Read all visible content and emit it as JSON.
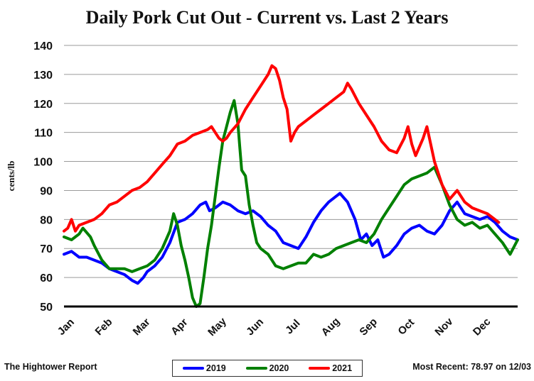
{
  "chart_data": {
    "type": "line",
    "title": "Daily Pork Cut Out - Current vs. Last 2 Years",
    "ylabel": "cents/lb",
    "xlabel": "",
    "ylim": [
      50,
      140
    ],
    "yticks": [
      "50",
      "60",
      "70",
      "80",
      "90",
      "100",
      "110",
      "120",
      "130",
      "140"
    ],
    "xlim": [
      1,
      13
    ],
    "months": [
      "Jan",
      "Feb",
      "Mar",
      "Apr",
      "May",
      "Jun",
      "Jul",
      "Aug",
      "Sep",
      "Oct",
      "Nov",
      "Dec"
    ],
    "grid": true,
    "legend_position": "bottom",
    "series": [
      {
        "name": "2019",
        "color": "#0000ff",
        "points": [
          [
            1.0,
            68
          ],
          [
            1.2,
            69
          ],
          [
            1.4,
            67
          ],
          [
            1.6,
            67
          ],
          [
            1.8,
            66
          ],
          [
            2.0,
            65
          ],
          [
            2.2,
            63
          ],
          [
            2.4,
            62
          ],
          [
            2.6,
            61
          ],
          [
            2.8,
            59
          ],
          [
            2.95,
            58
          ],
          [
            3.1,
            60
          ],
          [
            3.2,
            62
          ],
          [
            3.4,
            64
          ],
          [
            3.6,
            67
          ],
          [
            3.8,
            72
          ],
          [
            4.0,
            79
          ],
          [
            4.2,
            80
          ],
          [
            4.4,
            82
          ],
          [
            4.6,
            85
          ],
          [
            4.75,
            86
          ],
          [
            4.85,
            83
          ],
          [
            5.0,
            84
          ],
          [
            5.2,
            86
          ],
          [
            5.4,
            85
          ],
          [
            5.6,
            83
          ],
          [
            5.8,
            82
          ],
          [
            6.0,
            83
          ],
          [
            6.2,
            81
          ],
          [
            6.4,
            78
          ],
          [
            6.6,
            76
          ],
          [
            6.8,
            72
          ],
          [
            7.0,
            71
          ],
          [
            7.2,
            70
          ],
          [
            7.4,
            74
          ],
          [
            7.6,
            79
          ],
          [
            7.8,
            83
          ],
          [
            8.0,
            86
          ],
          [
            8.2,
            88
          ],
          [
            8.3,
            89
          ],
          [
            8.5,
            86
          ],
          [
            8.7,
            80
          ],
          [
            8.85,
            73
          ],
          [
            9.0,
            75
          ],
          [
            9.15,
            71
          ],
          [
            9.3,
            73
          ],
          [
            9.45,
            67
          ],
          [
            9.6,
            68
          ],
          [
            9.8,
            71
          ],
          [
            10.0,
            75
          ],
          [
            10.2,
            77
          ],
          [
            10.4,
            78
          ],
          [
            10.6,
            76
          ],
          [
            10.8,
            75
          ],
          [
            11.0,
            78
          ],
          [
            11.2,
            83
          ],
          [
            11.4,
            86
          ],
          [
            11.6,
            82
          ],
          [
            11.8,
            81
          ],
          [
            12.0,
            80
          ],
          [
            12.2,
            81
          ],
          [
            12.4,
            79
          ],
          [
            12.6,
            76
          ],
          [
            12.8,
            74
          ],
          [
            13.0,
            73
          ]
        ]
      },
      {
        "name": "2020",
        "color": "#008000",
        "points": [
          [
            1.0,
            74
          ],
          [
            1.2,
            73
          ],
          [
            1.4,
            75
          ],
          [
            1.5,
            77
          ],
          [
            1.7,
            74
          ],
          [
            1.8,
            71
          ],
          [
            2.0,
            66
          ],
          [
            2.2,
            63
          ],
          [
            2.4,
            63
          ],
          [
            2.6,
            63
          ],
          [
            2.8,
            62
          ],
          [
            3.0,
            63
          ],
          [
            3.2,
            64
          ],
          [
            3.4,
            66
          ],
          [
            3.6,
            70
          ],
          [
            3.8,
            76
          ],
          [
            3.9,
            82
          ],
          [
            4.0,
            78
          ],
          [
            4.1,
            71
          ],
          [
            4.2,
            66
          ],
          [
            4.3,
            60
          ],
          [
            4.4,
            53
          ],
          [
            4.5,
            50
          ],
          [
            4.6,
            51
          ],
          [
            4.7,
            60
          ],
          [
            4.8,
            70
          ],
          [
            4.9,
            78
          ],
          [
            5.0,
            88
          ],
          [
            5.1,
            98
          ],
          [
            5.2,
            107
          ],
          [
            5.3,
            112
          ],
          [
            5.4,
            117
          ],
          [
            5.5,
            121
          ],
          [
            5.6,
            113
          ],
          [
            5.65,
            105
          ],
          [
            5.7,
            97
          ],
          [
            5.8,
            95
          ],
          [
            5.9,
            85
          ],
          [
            6.0,
            78
          ],
          [
            6.1,
            72
          ],
          [
            6.2,
            70
          ],
          [
            6.4,
            68
          ],
          [
            6.6,
            64
          ],
          [
            6.8,
            63
          ],
          [
            7.0,
            64
          ],
          [
            7.2,
            65
          ],
          [
            7.4,
            65
          ],
          [
            7.6,
            68
          ],
          [
            7.8,
            67
          ],
          [
            8.0,
            68
          ],
          [
            8.2,
            70
          ],
          [
            8.4,
            71
          ],
          [
            8.6,
            72
          ],
          [
            8.8,
            73
          ],
          [
            9.0,
            72
          ],
          [
            9.2,
            75
          ],
          [
            9.4,
            80
          ],
          [
            9.6,
            84
          ],
          [
            9.8,
            88
          ],
          [
            10.0,
            92
          ],
          [
            10.2,
            94
          ],
          [
            10.4,
            95
          ],
          [
            10.6,
            96
          ],
          [
            10.8,
            98
          ],
          [
            11.0,
            92
          ],
          [
            11.2,
            85
          ],
          [
            11.4,
            80
          ],
          [
            11.6,
            78
          ],
          [
            11.8,
            79
          ],
          [
            12.0,
            77
          ],
          [
            12.2,
            78
          ],
          [
            12.4,
            75
          ],
          [
            12.6,
            72
          ],
          [
            12.8,
            68
          ],
          [
            13.0,
            73
          ]
        ]
      },
      {
        "name": "2021",
        "color": "#ff0000",
        "points": [
          [
            1.0,
            76
          ],
          [
            1.1,
            77
          ],
          [
            1.2,
            80
          ],
          [
            1.3,
            76
          ],
          [
            1.4,
            78
          ],
          [
            1.6,
            79
          ],
          [
            1.8,
            80
          ],
          [
            2.0,
            82
          ],
          [
            2.2,
            85
          ],
          [
            2.4,
            86
          ],
          [
            2.6,
            88
          ],
          [
            2.8,
            90
          ],
          [
            3.0,
            91
          ],
          [
            3.2,
            93
          ],
          [
            3.4,
            96
          ],
          [
            3.6,
            99
          ],
          [
            3.8,
            102
          ],
          [
            4.0,
            106
          ],
          [
            4.2,
            107
          ],
          [
            4.4,
            109
          ],
          [
            4.6,
            110
          ],
          [
            4.8,
            111
          ],
          [
            4.9,
            112
          ],
          [
            5.0,
            110
          ],
          [
            5.1,
            108
          ],
          [
            5.2,
            107
          ],
          [
            5.3,
            108
          ],
          [
            5.4,
            110
          ],
          [
            5.6,
            113
          ],
          [
            5.8,
            118
          ],
          [
            6.0,
            122
          ],
          [
            6.2,
            126
          ],
          [
            6.4,
            130
          ],
          [
            6.5,
            133
          ],
          [
            6.6,
            132
          ],
          [
            6.7,
            128
          ],
          [
            6.8,
            122
          ],
          [
            6.9,
            118
          ],
          [
            7.0,
            107
          ],
          [
            7.1,
            110
          ],
          [
            7.2,
            112
          ],
          [
            7.4,
            114
          ],
          [
            7.6,
            116
          ],
          [
            7.8,
            118
          ],
          [
            8.0,
            120
          ],
          [
            8.2,
            122
          ],
          [
            8.4,
            124
          ],
          [
            8.5,
            127
          ],
          [
            8.6,
            125
          ],
          [
            8.8,
            120
          ],
          [
            9.0,
            116
          ],
          [
            9.2,
            112
          ],
          [
            9.4,
            107
          ],
          [
            9.6,
            104
          ],
          [
            9.8,
            103
          ],
          [
            10.0,
            108
          ],
          [
            10.1,
            112
          ],
          [
            10.2,
            106
          ],
          [
            10.3,
            102
          ],
          [
            10.5,
            108
          ],
          [
            10.6,
            112
          ],
          [
            10.8,
            100
          ],
          [
            11.0,
            92
          ],
          [
            11.2,
            87
          ],
          [
            11.4,
            90
          ],
          [
            11.6,
            86
          ],
          [
            11.8,
            84
          ],
          [
            12.0,
            83
          ],
          [
            12.2,
            82
          ],
          [
            12.4,
            80
          ],
          [
            12.5,
            79
          ]
        ]
      }
    ]
  },
  "footer": {
    "source": "The Hightower Report",
    "most_recent": "Most Recent: 78.97 on 12/03"
  }
}
